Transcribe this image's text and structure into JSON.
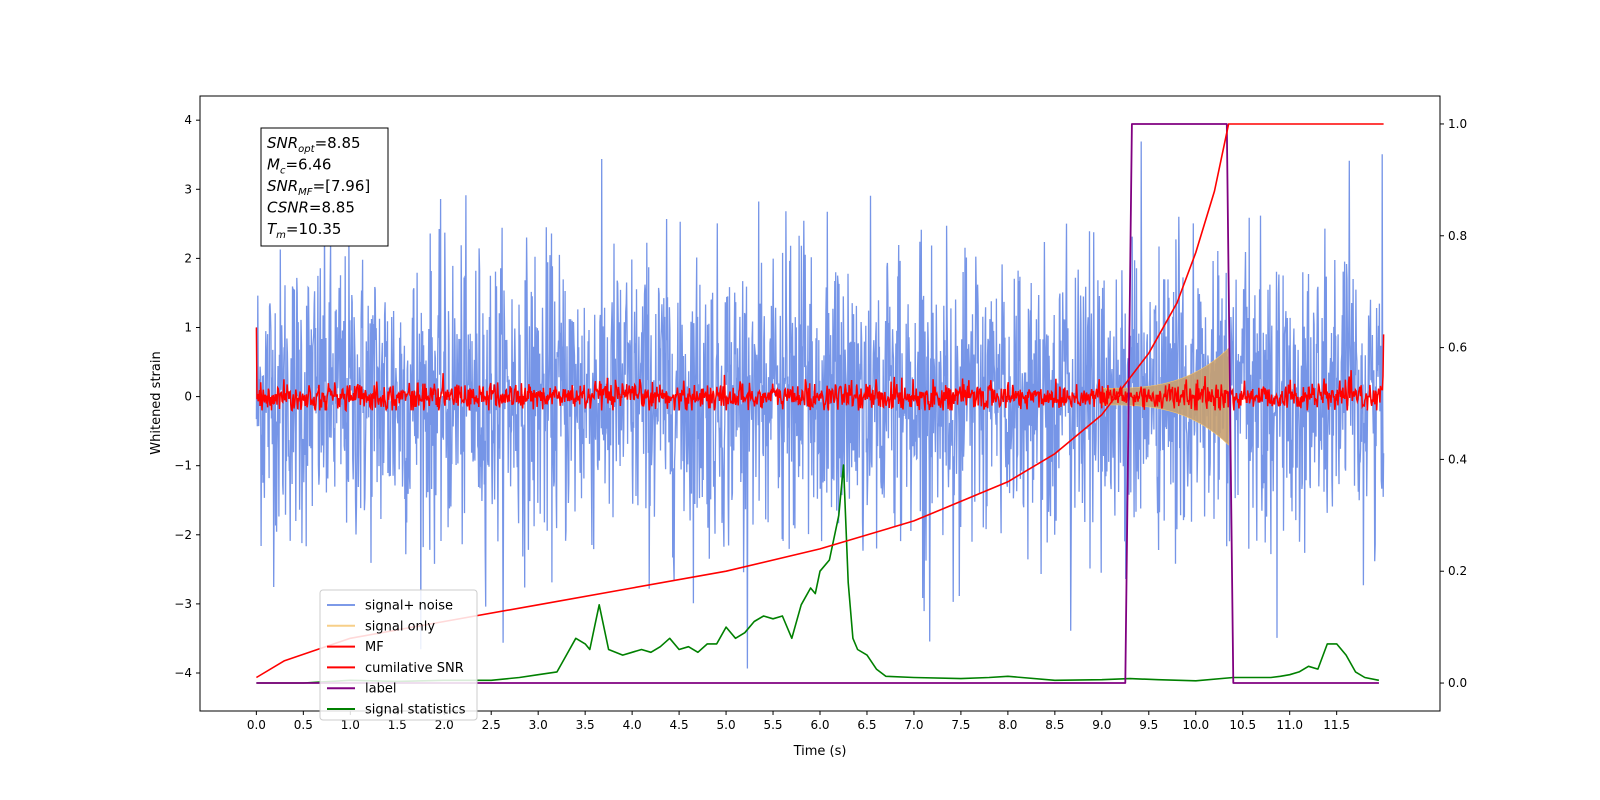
{
  "chart_data": {
    "type": "line",
    "xlabel": "Time (s)",
    "ylabel": "Whitened strain",
    "xlim": [
      -0.6,
      12.6
    ],
    "ylim_left": [
      -4.55,
      4.35
    ],
    "ylim_right": [
      -0.05,
      1.05
    ],
    "x_ticks": [
      "0.0",
      "0.5",
      "1.0",
      "1.5",
      "2.0",
      "2.5",
      "3.0",
      "3.5",
      "4.0",
      "4.5",
      "5.0",
      "5.5",
      "6.0",
      "6.5",
      "7.0",
      "7.5",
      "8.0",
      "8.5",
      "9.0",
      "9.5",
      "10.0",
      "10.5",
      "11.0",
      "11.5"
    ],
    "y_ticks_left": [
      "4",
      "3",
      "2",
      "1",
      "0",
      "−1",
      "−2",
      "−3",
      "−4"
    ],
    "y_ticks_right": [
      "1.0",
      "0.8",
      "0.6",
      "0.4",
      "0.2",
      "0.0"
    ],
    "grid": false,
    "legend_position": "lower-left",
    "annotation": {
      "lines": [
        {
          "sym": "SNR",
          "sub": "opt",
          "value": "=8.85"
        },
        {
          "sym": "M",
          "sub": "c",
          "value": "=6.46"
        },
        {
          "sym": "SNR",
          "sub": "MF",
          "value": "=[7.96]"
        },
        {
          "sym": "CSNR",
          "sub": "",
          "value": "=8.85"
        },
        {
          "sym": "T",
          "sub": "m",
          "value": "=10.35"
        }
      ]
    },
    "series": [
      {
        "name": "signal+ noise",
        "axis": "left",
        "color": "#6f8fe6",
        "x_range": [
          0.0,
          12.0
        ],
        "amplitude_1sigma": 1.0,
        "max": 3.95,
        "min": -4.1
      },
      {
        "name": "signal only",
        "axis": "left",
        "color": "#f5c36a",
        "chirp": {
          "start": 9.0,
          "merger": 10.35,
          "peak_amplitude": 0.7
        }
      },
      {
        "name": "MF",
        "axis": "left",
        "color": "#ff0000",
        "x_range": [
          0.0,
          12.0
        ],
        "amplitude_1sigma": 0.1,
        "max": 1.0,
        "min": -0.2
      },
      {
        "name": "cumilative SNR",
        "axis": "right",
        "color": "#ff0000",
        "x": [
          0.0,
          0.3,
          1.0,
          2.0,
          3.0,
          4.0,
          5.0,
          6.0,
          7.0,
          8.0,
          8.5,
          9.0,
          9.5,
          9.8,
          10.0,
          10.2,
          10.35,
          10.4,
          12.0
        ],
        "values": [
          0.01,
          0.04,
          0.08,
          0.11,
          0.14,
          0.17,
          0.2,
          0.24,
          0.29,
          0.36,
          0.41,
          0.48,
          0.59,
          0.68,
          0.77,
          0.88,
          1.0,
          1.0,
          1.0
        ]
      },
      {
        "name": "label",
        "axis": "right",
        "color": "#800080",
        "x": [
          0.0,
          9.25,
          9.32,
          10.33,
          10.4,
          11.95
        ],
        "values": [
          0.0,
          0.0,
          1.0,
          1.0,
          0.0,
          0.0
        ]
      },
      {
        "name": "signal statistics",
        "axis": "right",
        "color": "#008000",
        "x": [
          0.0,
          0.5,
          1.0,
          1.5,
          2.0,
          2.5,
          2.8,
          3.0,
          3.2,
          3.3,
          3.4,
          3.5,
          3.55,
          3.6,
          3.65,
          3.75,
          3.9,
          4.0,
          4.1,
          4.2,
          4.3,
          4.4,
          4.5,
          4.6,
          4.7,
          4.8,
          4.9,
          5.0,
          5.1,
          5.2,
          5.3,
          5.4,
          5.5,
          5.6,
          5.7,
          5.8,
          5.9,
          5.95,
          6.0,
          6.1,
          6.2,
          6.25,
          6.3,
          6.35,
          6.4,
          6.5,
          6.6,
          6.7,
          7.0,
          7.5,
          7.8,
          8.0,
          8.5,
          9.0,
          9.3,
          9.6,
          10.0,
          10.4,
          10.6,
          10.8,
          10.9,
          11.0,
          11.1,
          11.2,
          11.3,
          11.4,
          11.5,
          11.6,
          11.7,
          11.8,
          11.95
        ],
        "values": [
          0.0,
          0.0,
          0.005,
          0.003,
          0.005,
          0.005,
          0.01,
          0.015,
          0.02,
          0.05,
          0.08,
          0.07,
          0.06,
          0.1,
          0.14,
          0.06,
          0.05,
          0.055,
          0.06,
          0.055,
          0.065,
          0.08,
          0.06,
          0.065,
          0.055,
          0.07,
          0.07,
          0.1,
          0.08,
          0.09,
          0.11,
          0.12,
          0.115,
          0.12,
          0.08,
          0.14,
          0.17,
          0.16,
          0.2,
          0.22,
          0.3,
          0.39,
          0.18,
          0.08,
          0.06,
          0.05,
          0.025,
          0.012,
          0.01,
          0.008,
          0.01,
          0.012,
          0.005,
          0.006,
          0.008,
          0.006,
          0.004,
          0.01,
          0.01,
          0.01,
          0.012,
          0.015,
          0.02,
          0.03,
          0.025,
          0.07,
          0.07,
          0.05,
          0.02,
          0.01,
          0.005
        ]
      }
    ]
  }
}
